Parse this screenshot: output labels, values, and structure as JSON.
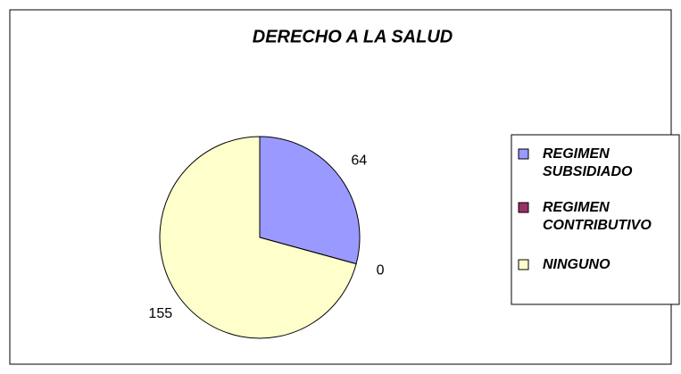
{
  "chart_data": {
    "type": "pie",
    "title": "DERECHO A LA SALUD",
    "categories": [
      "REGIMEN SUBSIDIADO",
      "REGIMEN CONTRIBUTIVO",
      "NINGUNO"
    ],
    "values": [
      64,
      0,
      155
    ],
    "colors": [
      "#9999ff",
      "#993366",
      "#ffffcc"
    ]
  }
}
